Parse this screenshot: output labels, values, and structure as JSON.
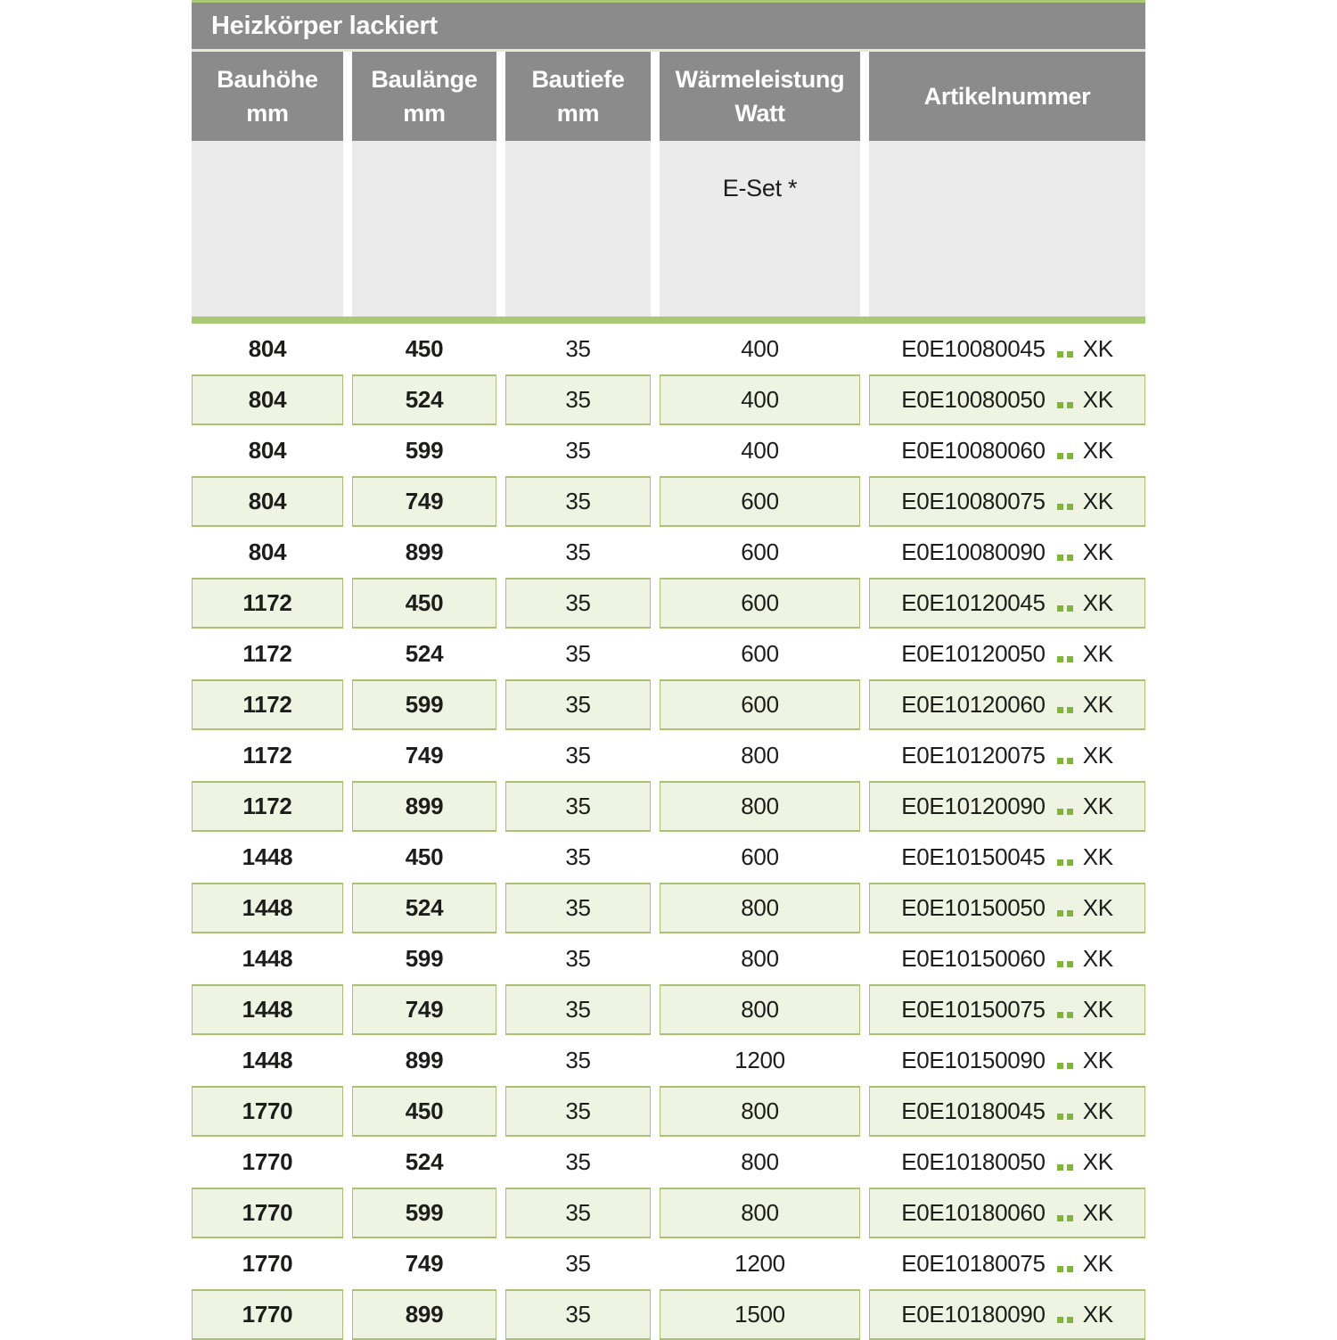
{
  "title": "Heizkörper lackiert",
  "columns": [
    {
      "line1": "Bauhöhe",
      "line2": "mm"
    },
    {
      "line1": "Baulänge",
      "line2": "mm"
    },
    {
      "line1": "Bautiefe",
      "line2": "mm"
    },
    {
      "line1": "Wärmeleistung",
      "line2": "Watt"
    },
    {
      "line1": "Artikelnummer",
      "line2": ""
    }
  ],
  "subheader": {
    "e_set_label": "E-Set *"
  },
  "colors": {
    "header_gray": "#8b8b8b",
    "subheader_gray": "#ebebeb",
    "accent_green": "#aac974",
    "row_green_bg": "#eff3e2",
    "row_border_green": "#a9c173",
    "dot_green": "#80b43c",
    "separator_cream": "#e7ead3",
    "text_black": "#1d1d1b",
    "header_text": "#ffffff"
  },
  "rows": [
    {
      "bauhoehe": "804",
      "baulaenge": "450",
      "bautiefe": "35",
      "watt": "400",
      "artikel_prefix": "E0E10080045",
      "artikel_suffix": "XK"
    },
    {
      "bauhoehe": "804",
      "baulaenge": "524",
      "bautiefe": "35",
      "watt": "400",
      "artikel_prefix": "E0E10080050",
      "artikel_suffix": "XK"
    },
    {
      "bauhoehe": "804",
      "baulaenge": "599",
      "bautiefe": "35",
      "watt": "400",
      "artikel_prefix": "E0E10080060",
      "artikel_suffix": "XK"
    },
    {
      "bauhoehe": "804",
      "baulaenge": "749",
      "bautiefe": "35",
      "watt": "600",
      "artikel_prefix": "E0E10080075",
      "artikel_suffix": "XK"
    },
    {
      "bauhoehe": "804",
      "baulaenge": "899",
      "bautiefe": "35",
      "watt": "600",
      "artikel_prefix": "E0E10080090",
      "artikel_suffix": "XK"
    },
    {
      "bauhoehe": "1172",
      "baulaenge": "450",
      "bautiefe": "35",
      "watt": "600",
      "artikel_prefix": "E0E10120045",
      "artikel_suffix": "XK"
    },
    {
      "bauhoehe": "1172",
      "baulaenge": "524",
      "bautiefe": "35",
      "watt": "600",
      "artikel_prefix": "E0E10120050",
      "artikel_suffix": "XK"
    },
    {
      "bauhoehe": "1172",
      "baulaenge": "599",
      "bautiefe": "35",
      "watt": "600",
      "artikel_prefix": "E0E10120060",
      "artikel_suffix": "XK"
    },
    {
      "bauhoehe": "1172",
      "baulaenge": "749",
      "bautiefe": "35",
      "watt": "800",
      "artikel_prefix": "E0E10120075",
      "artikel_suffix": "XK"
    },
    {
      "bauhoehe": "1172",
      "baulaenge": "899",
      "bautiefe": "35",
      "watt": "800",
      "artikel_prefix": "E0E10120090",
      "artikel_suffix": "XK"
    },
    {
      "bauhoehe": "1448",
      "baulaenge": "450",
      "bautiefe": "35",
      "watt": "600",
      "artikel_prefix": "E0E10150045",
      "artikel_suffix": "XK"
    },
    {
      "bauhoehe": "1448",
      "baulaenge": "524",
      "bautiefe": "35",
      "watt": "800",
      "artikel_prefix": "E0E10150050",
      "artikel_suffix": "XK"
    },
    {
      "bauhoehe": "1448",
      "baulaenge": "599",
      "bautiefe": "35",
      "watt": "800",
      "artikel_prefix": "E0E10150060",
      "artikel_suffix": "XK"
    },
    {
      "bauhoehe": "1448",
      "baulaenge": "749",
      "bautiefe": "35",
      "watt": "800",
      "artikel_prefix": "E0E10150075",
      "artikel_suffix": "XK"
    },
    {
      "bauhoehe": "1448",
      "baulaenge": "899",
      "bautiefe": "35",
      "watt": "1200",
      "artikel_prefix": "E0E10150090",
      "artikel_suffix": "XK"
    },
    {
      "bauhoehe": "1770",
      "baulaenge": "450",
      "bautiefe": "35",
      "watt": "800",
      "artikel_prefix": "E0E10180045",
      "artikel_suffix": "XK"
    },
    {
      "bauhoehe": "1770",
      "baulaenge": "524",
      "bautiefe": "35",
      "watt": "800",
      "artikel_prefix": "E0E10180050",
      "artikel_suffix": "XK"
    },
    {
      "bauhoehe": "1770",
      "baulaenge": "599",
      "bautiefe": "35",
      "watt": "800",
      "artikel_prefix": "E0E10180060",
      "artikel_suffix": "XK"
    },
    {
      "bauhoehe": "1770",
      "baulaenge": "749",
      "bautiefe": "35",
      "watt": "1200",
      "artikel_prefix": "E0E10180075",
      "artikel_suffix": "XK"
    },
    {
      "bauhoehe": "1770",
      "baulaenge": "899",
      "bautiefe": "35",
      "watt": "1500",
      "artikel_prefix": "E0E10180090",
      "artikel_suffix": "XK"
    }
  ]
}
